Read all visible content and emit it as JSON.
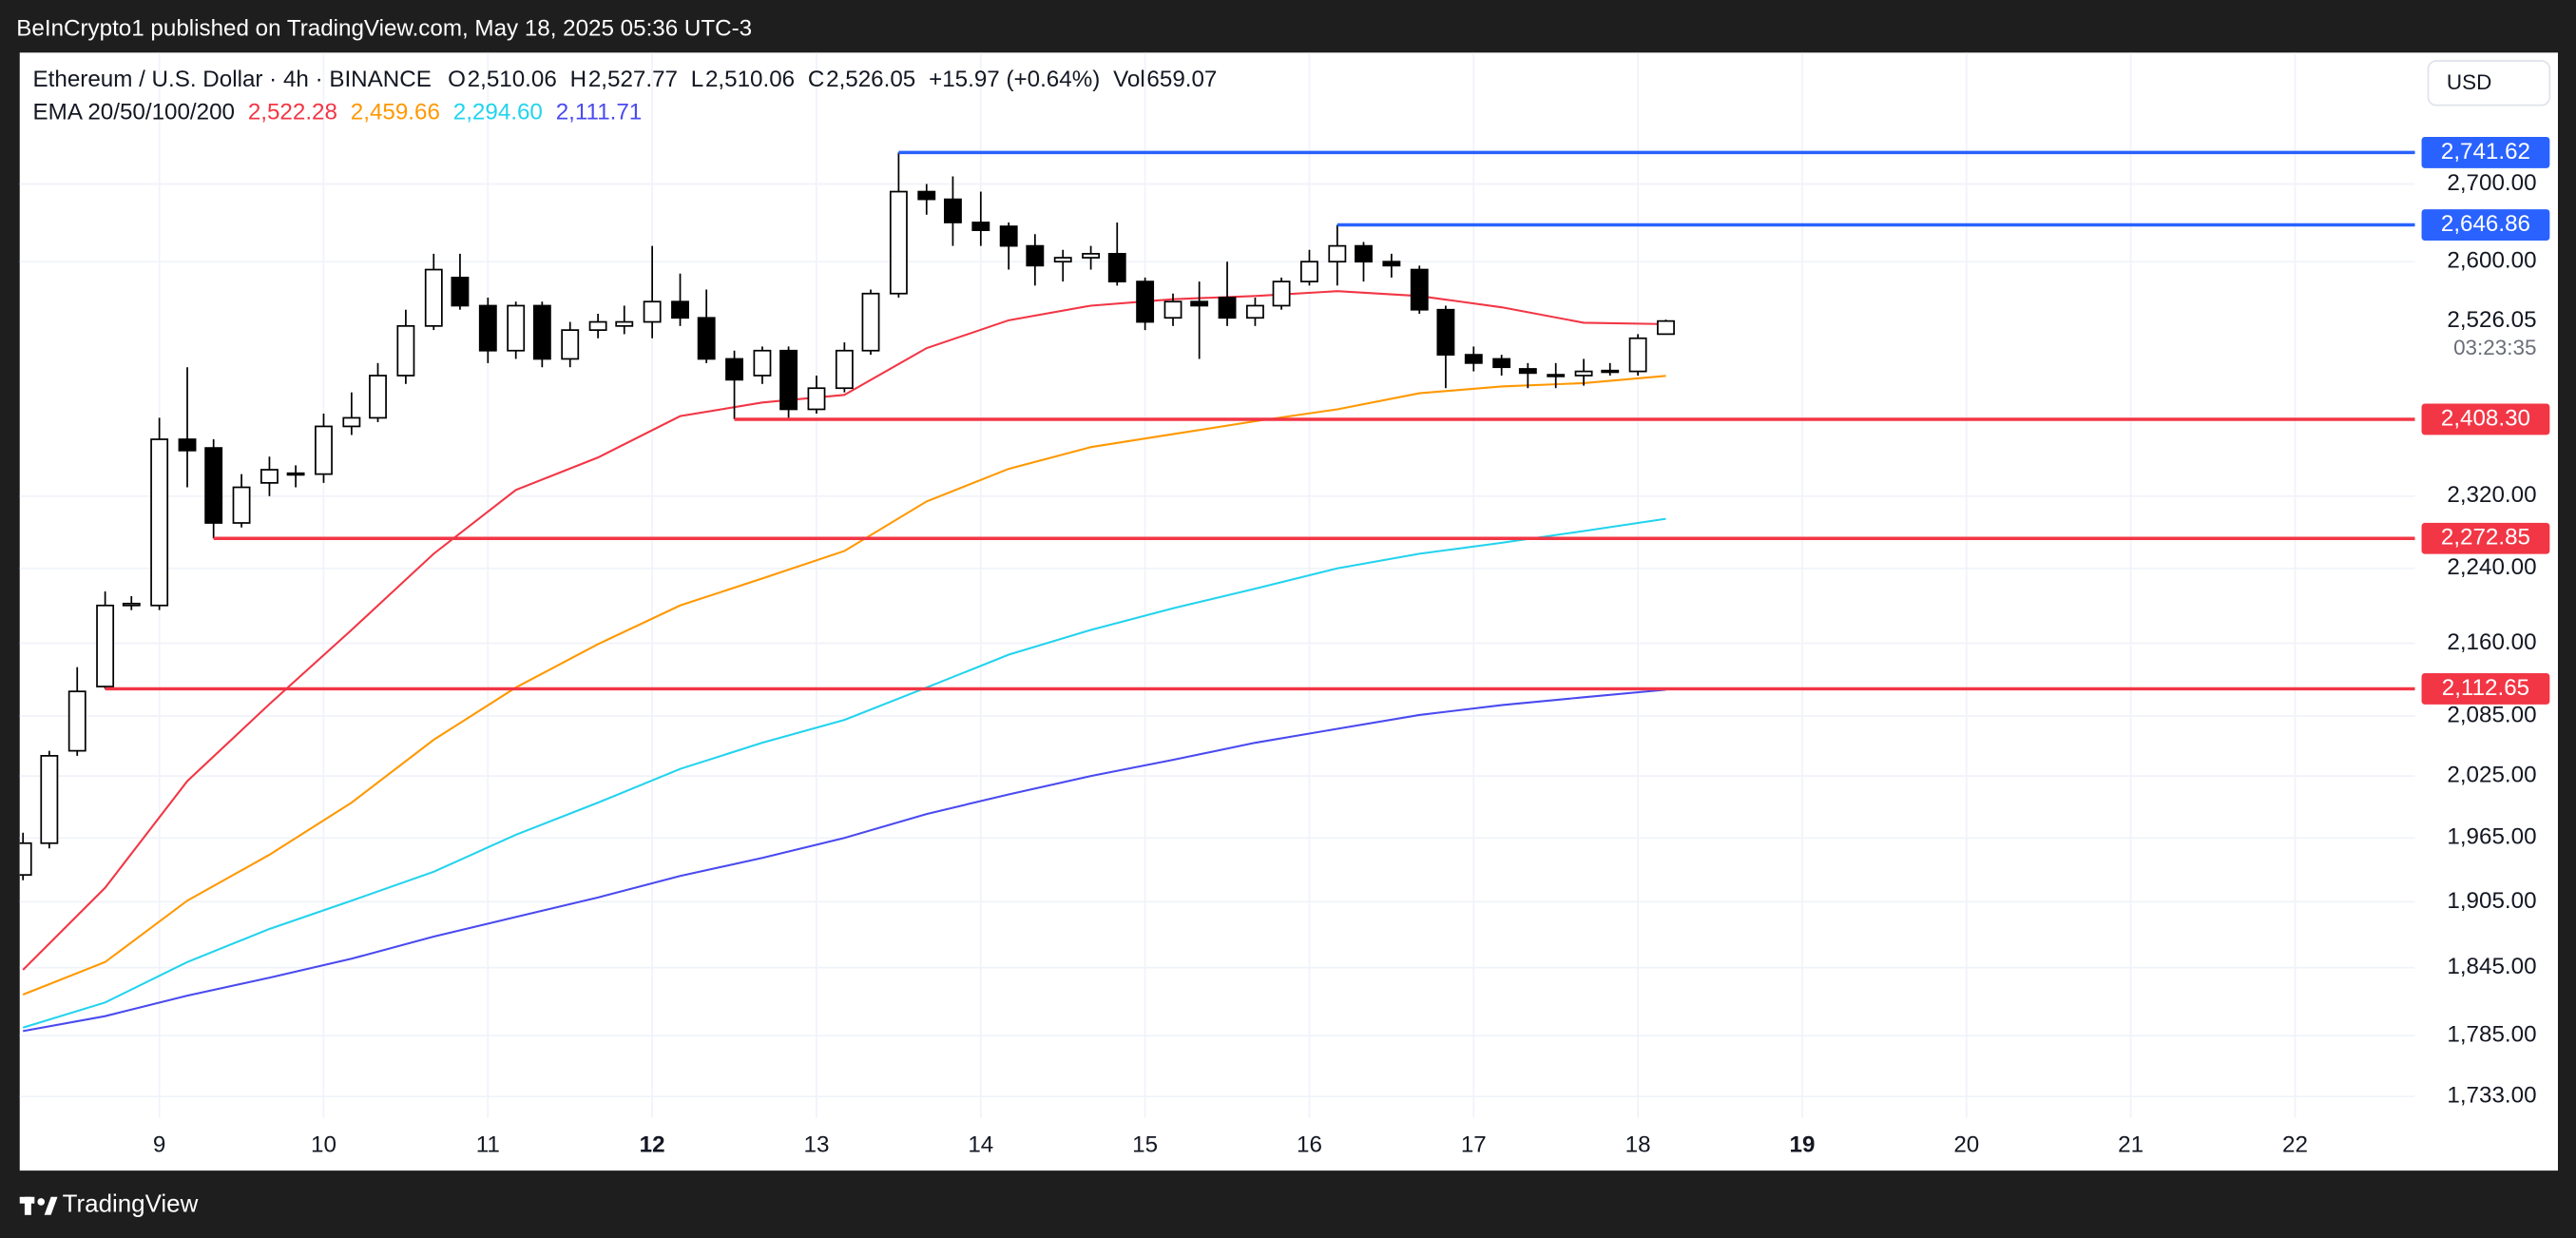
{
  "header": {
    "publisher": "BeInCrypto1 published on TradingView.com, May 18, 2025 05:36 UTC-3",
    "currency_button": "USD",
    "footer_brand": "TradingView"
  },
  "chart_data": {
    "type": "candlestick",
    "title": "Ethereum / U.S. Dollar · 4h · BINANCE",
    "ohlc_legend": [
      {
        "label": "O",
        "value": "2,510.06"
      },
      {
        "label": "H",
        "value": "2,527.77"
      },
      {
        "label": "L",
        "value": "2,510.06"
      },
      {
        "label": "C",
        "value": "2,526.05"
      }
    ],
    "change": "+15.97 (+0.64%)",
    "volume_label": "Vol",
    "volume": "659.07",
    "x": [
      8.17,
      8.33,
      8.5,
      8.67,
      8.83,
      9,
      9.17,
      9.33,
      9.5,
      9.67,
      9.83,
      10,
      10.17,
      10.33,
      10.5,
      10.67,
      10.83,
      11,
      11.17,
      11.33,
      11.5,
      11.67,
      11.83,
      12,
      12.17,
      12.33,
      12.5,
      12.67,
      12.83,
      13,
      13.17,
      13.33,
      13.5,
      13.67,
      13.83,
      14,
      14.17,
      14.33,
      14.5,
      14.67,
      14.83,
      15,
      15.17,
      15.33,
      15.5,
      15.67,
      15.83,
      16,
      16.17,
      16.33,
      16.5,
      16.67,
      16.83,
      17,
      17.17,
      17.33,
      17.5,
      17.67,
      17.83,
      18,
      18.17
    ],
    "open": [
      1930,
      1960,
      2050,
      2115,
      2200,
      2200,
      2385,
      2375,
      2290,
      2335,
      2345,
      2345,
      2400,
      2410,
      2460,
      2520,
      2580,
      2545,
      2490,
      2545,
      2480,
      2515,
      2520,
      2525,
      2550,
      2530,
      2480,
      2460,
      2490,
      2420,
      2445,
      2490,
      2560,
      2690,
      2680,
      2650,
      2645,
      2620,
      2600,
      2605,
      2610,
      2575,
      2530,
      2550,
      2555,
      2530,
      2545,
      2575,
      2600,
      2620,
      2600,
      2590,
      2540,
      2485,
      2480,
      2468,
      2460,
      2460,
      2465,
      2465,
      2510.06
    ],
    "high": [
      1970,
      2050,
      2135,
      2215,
      2210,
      2410,
      2470,
      2385,
      2345,
      2365,
      2355,
      2415,
      2440,
      2475,
      2540,
      2610,
      2610,
      2555,
      2550,
      2550,
      2525,
      2535,
      2545,
      2620,
      2585,
      2565,
      2490,
      2495,
      2495,
      2460,
      2500,
      2565,
      2741.62,
      2700,
      2710,
      2690,
      2650,
      2635,
      2615,
      2620,
      2650,
      2580,
      2560,
      2575,
      2600,
      2555,
      2580,
      2615,
      2646.86,
      2625,
      2610,
      2595,
      2545,
      2495,
      2485,
      2475,
      2475,
      2480,
      2475,
      2510,
      2527.77
    ],
    "low": [
      1925,
      1955,
      2045,
      2112.65,
      2195,
      2195,
      2330,
      2272.85,
      2285,
      2320,
      2330,
      2335,
      2390,
      2405,
      2450,
      2515,
      2540,
      2475,
      2480,
      2470,
      2470,
      2505,
      2510,
      2505,
      2520,
      2475,
      2408.3,
      2450,
      2410,
      2415,
      2440,
      2485,
      2555,
      2660,
      2620,
      2620,
      2590,
      2570,
      2575,
      2590,
      2570,
      2515,
      2520,
      2480,
      2520,
      2520,
      2540,
      2570,
      2570,
      2575,
      2580,
      2535,
      2445,
      2465,
      2460,
      2445,
      2445,
      2448,
      2460,
      2460,
      2510.06
    ],
    "close": [
      1960,
      2045,
      2110,
      2200,
      2202,
      2385,
      2372,
      2290,
      2330,
      2350,
      2346,
      2400,
      2410,
      2460,
      2520,
      2590,
      2545,
      2490,
      2545,
      2480,
      2515,
      2525,
      2525,
      2550,
      2530,
      2480,
      2455,
      2490,
      2420,
      2445,
      2490,
      2560,
      2690,
      2680,
      2650,
      2640,
      2620,
      2595,
      2605,
      2610,
      2575,
      2525,
      2550,
      2545,
      2530,
      2545,
      2575,
      2600,
      2620,
      2600,
      2595,
      2540,
      2485,
      2475,
      2470,
      2463,
      2461,
      2465,
      2466,
      2505,
      2526.05
    ],
    "up_color": "#ffffff",
    "down_color": "#000000",
    "border_color": "#000000",
    "indicator": {
      "name": "EMA 20/50/100/200",
      "x": [
        8.17,
        8.67,
        9.17,
        9.67,
        10.17,
        10.67,
        11.17,
        11.67,
        12.17,
        12.67,
        13.17,
        13.67,
        14.17,
        14.67,
        15.17,
        15.67,
        16.17,
        16.67,
        17.17,
        17.67,
        18.17
      ],
      "series": [
        {
          "color": "#f23645",
          "value_label": "2,522.28",
          "values": [
            1843,
            1918,
            2020,
            2097,
            2174,
            2256,
            2327,
            2364,
            2412,
            2428,
            2437,
            2493,
            2527,
            2545,
            2553,
            2557,
            2563,
            2557,
            2543,
            2524,
            2522.28
          ]
        },
        {
          "color": "#ff9800",
          "value_label": "2,459.66",
          "values": [
            1821,
            1850,
            1906,
            1949,
            1999,
            2061,
            2114,
            2159,
            2200,
            2229,
            2259,
            2314,
            2351,
            2376,
            2391,
            2406,
            2420,
            2439,
            2447,
            2451,
            2459.66
          ]
        },
        {
          "color": "#22d3ee",
          "value_label": "2,294.60",
          "values": [
            1792,
            1814,
            1850,
            1880,
            1906,
            1933,
            1968,
            1999,
            2032,
            2058,
            2081,
            2114,
            2148,
            2174,
            2197,
            2218,
            2240,
            2256,
            2268,
            2281,
            2294.6
          ]
        },
        {
          "color": "#4a4af0",
          "value_label": "2,111.71",
          "values": [
            1789,
            1802,
            1820,
            1836,
            1853,
            1873,
            1891,
            1909,
            1929,
            1946,
            1965,
            1988,
            2007,
            2025,
            2041,
            2058,
            2072,
            2086,
            2096,
            2104,
            2111.71
          ]
        }
      ]
    },
    "levels": [
      {
        "value": 2741.62,
        "label": "2,741.62",
        "start": 13.5,
        "color": "#2962ff"
      },
      {
        "value": 2646.86,
        "label": "2,646.86",
        "start": 16.17,
        "color": "#2962ff"
      },
      {
        "value": 2408.3,
        "label": "2,408.30",
        "start": 12.5,
        "color": "#f23645"
      },
      {
        "value": 2272.85,
        "label": "2,272.85",
        "start": 9.33,
        "color": "#f23645"
      },
      {
        "value": 2112.65,
        "label": "2,112.65",
        "start": 8.67,
        "color": "#f23645"
      }
    ],
    "last_price": {
      "value": 2526.05,
      "label": "2,526.05",
      "countdown": "03:23:35"
    },
    "xlim": [
      8.15,
      22.73
    ],
    "xticks": [
      9,
      10,
      11,
      12,
      13,
      14,
      15,
      16,
      17,
      18,
      19,
      20,
      21,
      22
    ],
    "bold_xticks": [
      12,
      19
    ],
    "ylim": [
      1715,
      2878
    ],
    "log_scale": true,
    "yticks": [
      {
        "value": 1733,
        "label": "1,733.00"
      },
      {
        "value": 1785,
        "label": "1,785.00"
      },
      {
        "value": 1845,
        "label": "1,845.00"
      },
      {
        "value": 1905,
        "label": "1,905.00"
      },
      {
        "value": 1965,
        "label": "1,965.00"
      },
      {
        "value": 2025,
        "label": "2,025.00"
      },
      {
        "value": 2085,
        "label": "2,085.00"
      },
      {
        "value": 2160,
        "label": "2,160.00"
      },
      {
        "value": 2240,
        "label": "2,240.00"
      },
      {
        "value": 2320,
        "label": "2,320.00"
      },
      {
        "value": 2600,
        "label": "2,600.00"
      },
      {
        "value": 2700,
        "label": "2,700.00"
      }
    ],
    "grid": true
  }
}
